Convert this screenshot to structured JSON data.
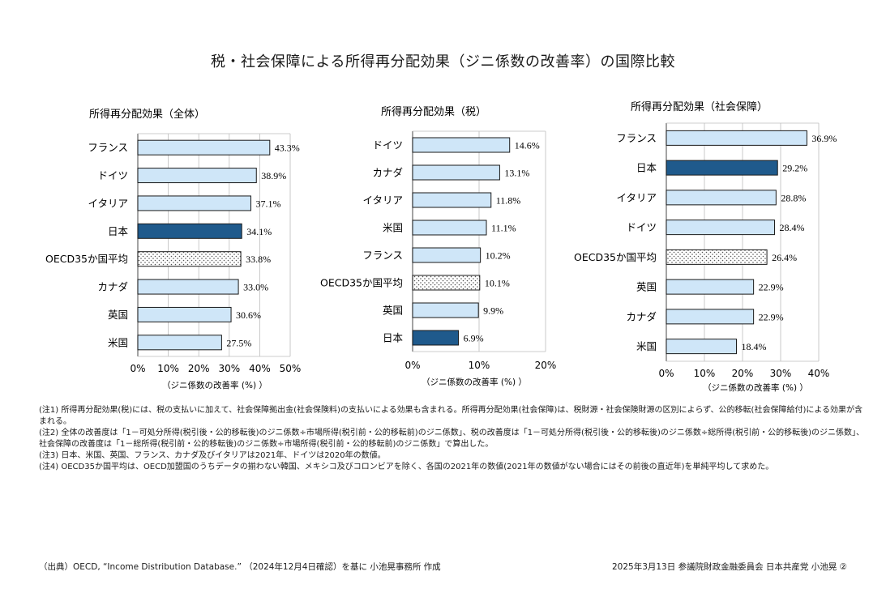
{
  "title": "税・社会保障による所得再分配効果（ジニ係数の改善率）の国際比較",
  "chart_data": [
    {
      "type": "bar",
      "orientation": "horizontal",
      "title": "所得再分配効果（全体）",
      "xlabel": "（ジニ係数の改善率 (%) ）",
      "xlim": [
        0,
        50
      ],
      "xticks": [
        "0%",
        "10%",
        "20%",
        "30%",
        "40%",
        "50%"
      ],
      "categories": [
        "フランス",
        "ドイツ",
        "イタリア",
        "日本",
        "OECD35か国平均",
        "カナダ",
        "英国",
        "米国"
      ],
      "values": [
        43.3,
        38.9,
        37.1,
        34.1,
        33.8,
        33.0,
        30.6,
        27.5
      ],
      "value_labels": [
        "43.3%",
        "38.9%",
        "37.1%",
        "34.1%",
        "33.8%",
        "33.0%",
        "30.6%",
        "27.5%"
      ],
      "styles": [
        "normal",
        "normal",
        "normal",
        "japan",
        "oecd",
        "normal",
        "normal",
        "normal"
      ],
      "grid": true
    },
    {
      "type": "bar",
      "orientation": "horizontal",
      "title": "所得再分配効果（税）",
      "xlabel": "（ジニ係数の改善率 (%) ）",
      "xlim": [
        0,
        20
      ],
      "xticks": [
        "0%",
        "10%",
        "20%"
      ],
      "categories": [
        "ドイツ",
        "カナダ",
        "イタリア",
        "米国",
        "フランス",
        "OECD35か国平均",
        "英国",
        "日本"
      ],
      "values": [
        14.6,
        13.1,
        11.8,
        11.1,
        10.2,
        10.1,
        9.9,
        6.9
      ],
      "value_labels": [
        "14.6%",
        "13.1%",
        "11.8%",
        "11.1%",
        "10.2%",
        "10.1%",
        "9.9%",
        "6.9%"
      ],
      "styles": [
        "normal",
        "normal",
        "normal",
        "normal",
        "normal",
        "oecd",
        "normal",
        "japan"
      ],
      "grid": true
    },
    {
      "type": "bar",
      "orientation": "horizontal",
      "title": "所得再分配効果（社会保障）",
      "xlabel": "（ジニ係数の改善率 (%) ）",
      "xlim": [
        0,
        40
      ],
      "xticks": [
        "0%",
        "10%",
        "20%",
        "30%",
        "40%"
      ],
      "categories": [
        "フランス",
        "日本",
        "イタリア",
        "ドイツ",
        "OECD35か国平均",
        "英国",
        "カナダ",
        "米国"
      ],
      "values": [
        36.9,
        29.2,
        28.8,
        28.4,
        26.4,
        22.9,
        22.9,
        18.4
      ],
      "value_labels": [
        "36.9%",
        "29.2%",
        "28.8%",
        "28.4%",
        "26.4%",
        "22.9%",
        "22.9%",
        "18.4%"
      ],
      "styles": [
        "normal",
        "japan",
        "normal",
        "normal",
        "oecd",
        "normal",
        "normal",
        "normal"
      ],
      "grid": true
    }
  ],
  "colors": {
    "bar_fill": "#cfe6f8",
    "bar_stroke": "#1a1a1a",
    "japan_fill": "#1f5a8c",
    "grid": "#bdbdbd",
    "dots": "#555555"
  },
  "notes": [
    "(注1) 所得再分配効果(税)には、税の支払いに加えて、社会保障拠出金(社会保険料)の支払いによる効果も含まれる。所得再分配効果(社会保障)は、税財源・社会保険財源の区別によらず、公的移転(社会保障給付)による効果が含まれる。",
    "(注2) 全体の改善度は「1－可処分所得(税引後・公的移転後)のジニ係数÷市場所得(税引前・公的移転前)のジニ係数」、税の改善度は「1－可処分所得(税引後・公的移転後)のジニ係数÷総所得(税引前・公的移転後)のジニ係数」、社会保障の改善度は「1－総所得(税引前・公的移転後)のジニ係数÷市場所得(税引前・公的移転前)のジニ係数」で算出した。",
    "(注3) 日本、米国、英国、フランス、カナダ及びイタリアは2021年、ドイツは2020年の数値。",
    "(注4) OECD35か国平均は、OECD加盟国のうちデータの揃わない韓国、メキシコ及びコロンビアを除く、各国の2021年の数値(2021年の数値がない場合にはその前後の直近年)を単純平均して求めた。"
  ],
  "source": "（出典）OECD, “Income Distribution Database.” （2024年12月4日確認）を基に 小池晃事務所 作成",
  "footer": "2025年3月13日 参議院財政金融委員会 日本共産党 小池晃 ②"
}
